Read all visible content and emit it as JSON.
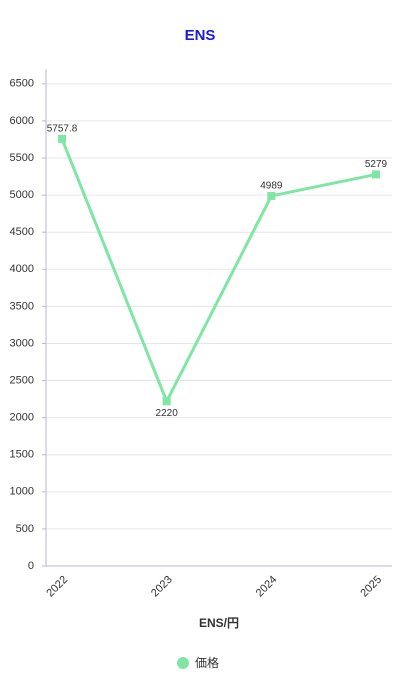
{
  "chart_data": {
    "type": "line",
    "title": "ENS",
    "x_label": "ENS/円",
    "categories": [
      "2022",
      "2023",
      "2024",
      "2025"
    ],
    "series": [
      {
        "name": "価格",
        "color": "#7fe6a4",
        "values": [
          5757.8,
          2220,
          4989,
          5279
        ]
      }
    ],
    "ylim": [
      0,
      6700
    ],
    "yticks": [
      0,
      500,
      1000,
      1500,
      2000,
      2500,
      3000,
      3500,
      4000,
      4500,
      5000,
      5500,
      6000,
      6500
    ],
    "grid": true,
    "legend": "bottom"
  }
}
